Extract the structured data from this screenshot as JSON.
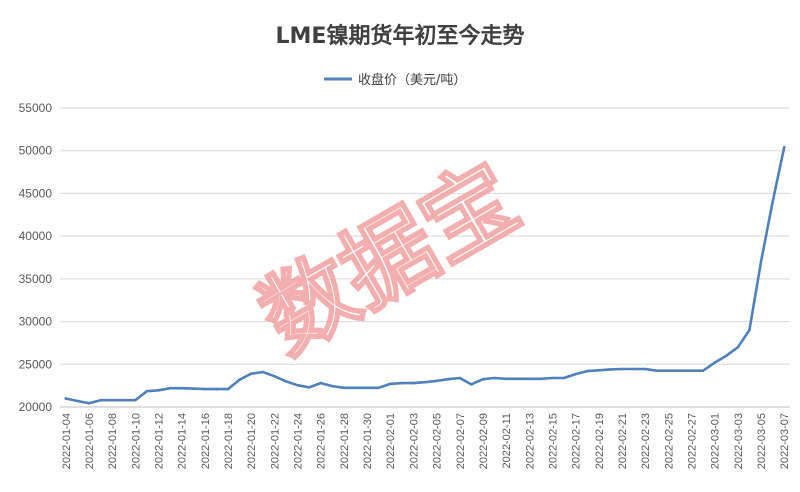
{
  "chart_data": {
    "type": "line",
    "title": "LME镍期货年初至今走势",
    "xlabel": "",
    "ylabel": "",
    "ylim": [
      20000,
      55000
    ],
    "y_ticks": [
      20000,
      25000,
      30000,
      35000,
      40000,
      45000,
      50000,
      55000
    ],
    "grid": true,
    "legend_position": "top-center",
    "line_color": "#4f81bd",
    "watermark": "数据宝",
    "x_tick_labels": [
      "2022-01-04",
      "2022-01-06",
      "2022-01-08",
      "2022-01-10",
      "2022-01-12",
      "2022-01-14",
      "2022-01-16",
      "2022-01-18",
      "2022-01-20",
      "2022-01-22",
      "2022-01-24",
      "2022-01-26",
      "2022-01-28",
      "2022-01-30",
      "2022-02-01",
      "2022-02-03",
      "2022-02-05",
      "2022-02-07",
      "2022-02-09",
      "2022-02-11",
      "2022-02-13",
      "2022-02-15",
      "2022-02-17",
      "2022-02-19",
      "2022-02-21",
      "2022-02-23",
      "2022-02-25",
      "2022-02-27",
      "2022-03-01",
      "2022-03-03",
      "2022-03-05",
      "2022-03-07"
    ],
    "series": [
      {
        "name": "收盘价（美元/吨）",
        "x": [
          "2022-01-04",
          "2022-01-05",
          "2022-01-06",
          "2022-01-07",
          "2022-01-08",
          "2022-01-09",
          "2022-01-10",
          "2022-01-11",
          "2022-01-12",
          "2022-01-13",
          "2022-01-14",
          "2022-01-15",
          "2022-01-16",
          "2022-01-17",
          "2022-01-18",
          "2022-01-19",
          "2022-01-20",
          "2022-01-21",
          "2022-01-22",
          "2022-01-23",
          "2022-01-24",
          "2022-01-25",
          "2022-01-26",
          "2022-01-27",
          "2022-01-28",
          "2022-01-29",
          "2022-01-30",
          "2022-01-31",
          "2022-02-01",
          "2022-02-02",
          "2022-02-03",
          "2022-02-04",
          "2022-02-05",
          "2022-02-06",
          "2022-02-07",
          "2022-02-08",
          "2022-02-09",
          "2022-02-10",
          "2022-02-11",
          "2022-02-12",
          "2022-02-13",
          "2022-02-14",
          "2022-02-15",
          "2022-02-16",
          "2022-02-17",
          "2022-02-18",
          "2022-02-19",
          "2022-02-20",
          "2022-02-21",
          "2022-02-22",
          "2022-02-23",
          "2022-02-24",
          "2022-02-25",
          "2022-02-26",
          "2022-02-27",
          "2022-02-28",
          "2022-03-01",
          "2022-03-02",
          "2022-03-03",
          "2022-03-04",
          "2022-03-05",
          "2022-03-06",
          "2022-03-07"
        ],
        "values": [
          21000,
          20700,
          20450,
          20800,
          20800,
          20800,
          20800,
          21850,
          21950,
          22200,
          22200,
          22150,
          22100,
          22100,
          22100,
          23200,
          23900,
          24100,
          23600,
          23000,
          22550,
          22300,
          22800,
          22450,
          22250,
          22250,
          22250,
          22250,
          22700,
          22800,
          22800,
          22900,
          23050,
          23250,
          23400,
          22650,
          23250,
          23400,
          23300,
          23300,
          23300,
          23300,
          23400,
          23400,
          23850,
          24200,
          24300,
          24400,
          24450,
          24450,
          24450,
          24250,
          24250,
          24250,
          24250,
          24250,
          25200,
          26000,
          27000,
          29000,
          37000,
          44000,
          50400
        ]
      }
    ]
  }
}
